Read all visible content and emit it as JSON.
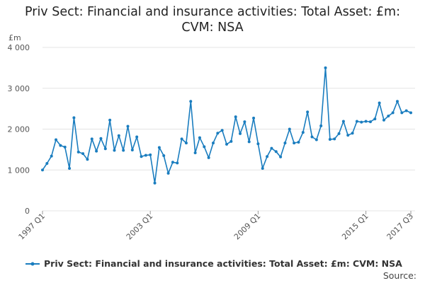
{
  "chart_data": {
    "type": "line",
    "title_line1": "Priv Sect: Financial and insurance activities: Total Asset: £m:",
    "title_line2": "CVM: NSA",
    "ylabel": "£m",
    "ylim": [
      0,
      4000
    ],
    "yticks": [
      0,
      1000,
      2000,
      3000,
      4000
    ],
    "ytick_labels": [
      "0",
      "1 000",
      "2 000",
      "3 000",
      "4 000"
    ],
    "xtick_labels": [
      "1997 Q1",
      "2003 Q1",
      "2009 Q1",
      "2015 Q1",
      "2017 Q3"
    ],
    "xtick_index": [
      0,
      24,
      48,
      72,
      82
    ],
    "grid": true,
    "legend_position": "bottom",
    "series": [
      {
        "name": "Priv Sect: Financial and insurance activities: Total Asset: £m: CVM: NSA",
        "color": "#1a7dbf",
        "values": [
          1000,
          1160,
          1340,
          1740,
          1600,
          1560,
          1040,
          2280,
          1440,
          1400,
          1260,
          1760,
          1460,
          1770,
          1520,
          2220,
          1480,
          1840,
          1480,
          2070,
          1490,
          1810,
          1330,
          1360,
          1370,
          680,
          1550,
          1350,
          920,
          1190,
          1170,
          1760,
          1660,
          2680,
          1420,
          1790,
          1570,
          1300,
          1660,
          1900,
          1970,
          1630,
          1700,
          2300,
          1890,
          2180,
          1690,
          2270,
          1640,
          1040,
          1330,
          1530,
          1450,
          1320,
          1660,
          2000,
          1660,
          1680,
          1920,
          2420,
          1810,
          1740,
          2080,
          3500,
          1750,
          1760,
          1890,
          2190,
          1850,
          1900,
          2190,
          2170,
          2190,
          2180,
          2250,
          2640,
          2220,
          2320,
          2400,
          2680,
          2400,
          2450,
          2400
        ]
      }
    ]
  },
  "footer": {
    "source_label": "Source:"
  }
}
